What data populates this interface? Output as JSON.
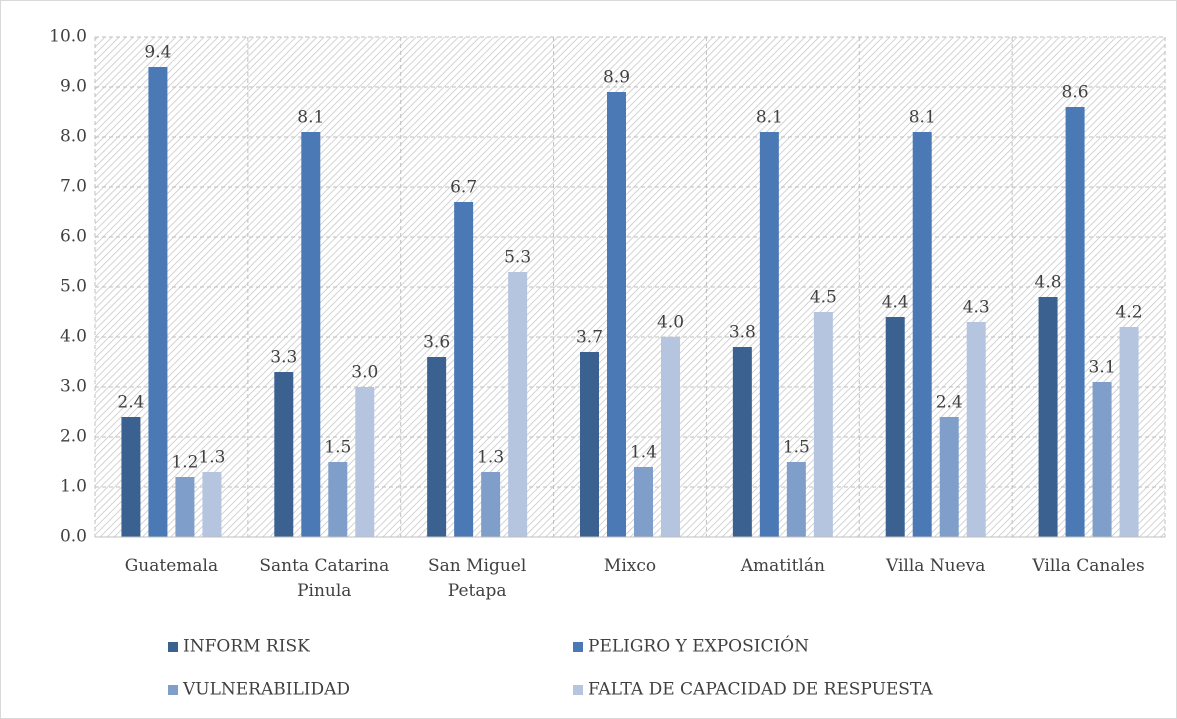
{
  "chart_data": {
    "type": "bar",
    "categories": [
      "Guatemala",
      "Santa Catarina Pinula",
      "San Miguel Petapa",
      "Mixco",
      "Amatitlán",
      "Villa Nueva",
      "Villa Canales"
    ],
    "series": [
      {
        "name": "INFORM RISK",
        "color": "#3b6190",
        "values": [
          2.4,
          3.3,
          3.6,
          3.7,
          3.8,
          4.4,
          4.8
        ],
        "value_labels": [
          "2.4",
          "3.3",
          "3.6",
          "3.7",
          "3.8",
          "4.4",
          "4.8"
        ]
      },
      {
        "name": "PELIGRO Y EXPOSICIÓN",
        "color": "#4a79b5",
        "values": [
          9.4,
          8.1,
          6.7,
          8.9,
          8.1,
          8.1,
          8.6
        ],
        "value_labels": [
          "9.4",
          "8.1",
          "6.7",
          "8.9",
          "8.1",
          "8.1",
          "8.6"
        ]
      },
      {
        "name": "VULNERABILIDAD",
        "color": "#809eca",
        "values": [
          1.2,
          1.5,
          1.3,
          1.4,
          1.5,
          2.4,
          3.1
        ],
        "value_labels": [
          "1.2",
          "1.5",
          "1.3",
          "1.4",
          "1.5",
          "2.4",
          "3.1"
        ]
      },
      {
        "name": "FALTA DE CAPACIDAD DE RESPUESTA",
        "color": "#b5c5e0",
        "values": [
          1.3,
          3.0,
          5.3,
          4.0,
          4.5,
          4.3,
          4.2
        ],
        "value_labels": [
          "1.3",
          "3.0",
          "5.3",
          "4.0",
          "4.5",
          "4.3",
          "4.2"
        ]
      }
    ],
    "ylim": [
      0,
      10
    ],
    "yticks": [
      {
        "value": 0,
        "label": "0.0"
      },
      {
        "value": 1,
        "label": "1.0"
      },
      {
        "value": 2,
        "label": "2.0"
      },
      {
        "value": 3,
        "label": "3.0"
      },
      {
        "value": 4,
        "label": "4.0"
      },
      {
        "value": 5,
        "label": "5.0"
      },
      {
        "value": 6,
        "label": "6.0"
      },
      {
        "value": 7,
        "label": "7.0"
      },
      {
        "value": 8,
        "label": "8.0"
      },
      {
        "value": 9,
        "label": "9.0"
      },
      {
        "value": 10,
        "label": "10.0"
      }
    ],
    "grid": true,
    "legend": "bottom"
  }
}
